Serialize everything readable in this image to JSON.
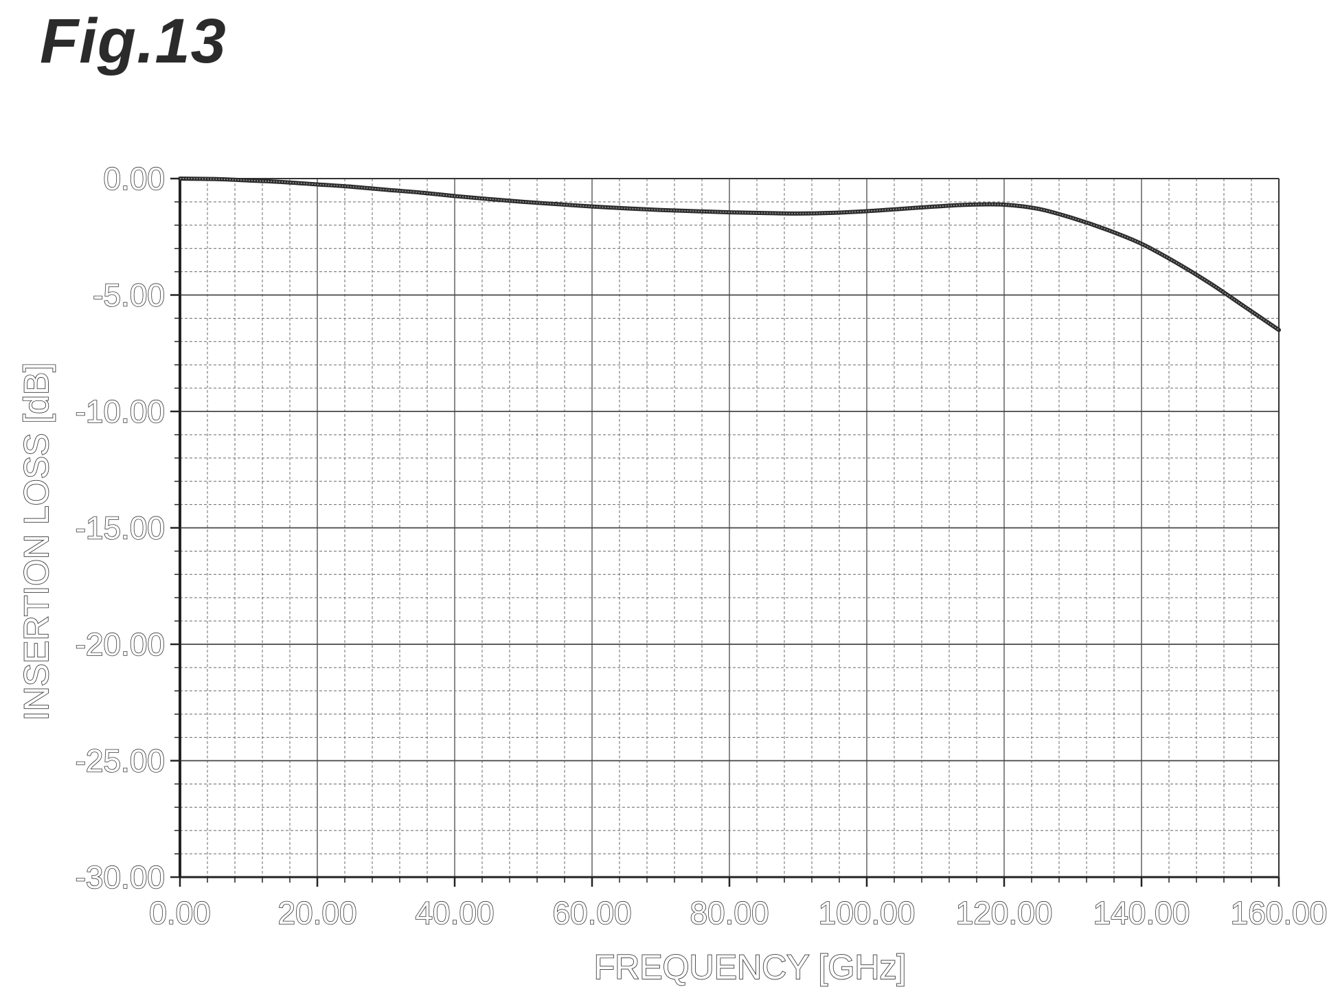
{
  "figure_label": "Fig.13",
  "chart_data": {
    "type": "line",
    "xlabel": "FREQUENCY [GHz]",
    "ylabel": "INSERTION LOSS [dB]",
    "xlim": [
      0,
      160
    ],
    "ylim": [
      -30,
      0
    ],
    "x_ticks": [
      "0.00",
      "20.00",
      "40.00",
      "60.00",
      "80.00",
      "100.00",
      "120.00",
      "140.00",
      "160.00"
    ],
    "y_ticks": [
      "0.00",
      "-5.00",
      "-10.00",
      "-15.00",
      "-20.00",
      "-25.00",
      "-30.00"
    ],
    "grid": true,
    "series": [
      {
        "x": [
          0,
          5,
          10,
          15,
          20,
          25,
          30,
          35,
          40,
          45,
          50,
          55,
          60,
          65,
          70,
          75,
          80,
          85,
          90,
          95,
          100,
          105,
          110,
          115,
          120,
          125,
          130,
          135,
          140,
          145,
          150,
          155,
          160
        ],
        "y": [
          0.0,
          -0.02,
          -0.08,
          -0.15,
          -0.25,
          -0.35,
          -0.48,
          -0.6,
          -0.75,
          -0.88,
          -1.0,
          -1.1,
          -1.2,
          -1.28,
          -1.35,
          -1.4,
          -1.45,
          -1.48,
          -1.5,
          -1.47,
          -1.4,
          -1.3,
          -1.2,
          -1.12,
          -1.12,
          -1.3,
          -1.7,
          -2.2,
          -2.8,
          -3.6,
          -4.5,
          -5.5,
          -6.5
        ]
      }
    ]
  }
}
